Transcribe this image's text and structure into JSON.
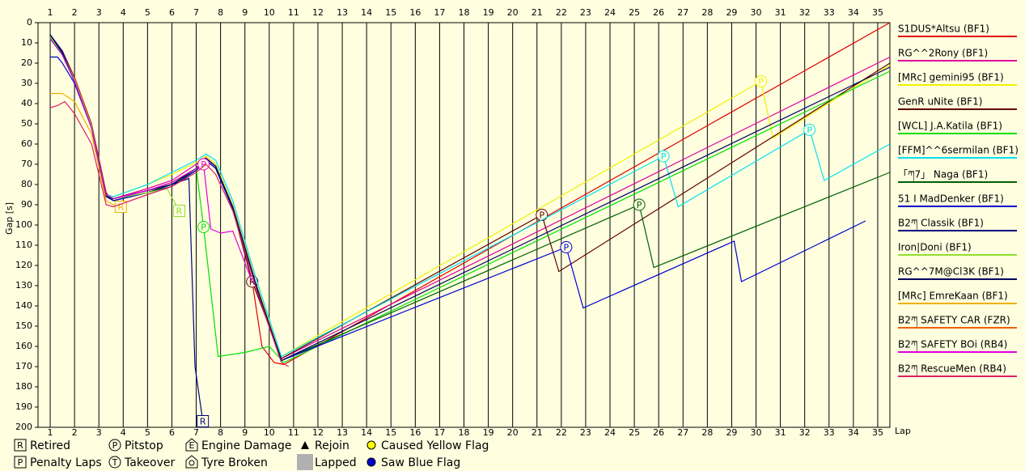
{
  "chart_data": {
    "type": "line",
    "y_label": "Gap [s]",
    "x_label": "Lap",
    "xlim": [
      0.5,
      35.5
    ],
    "xticks": [
      1,
      2,
      3,
      4,
      5,
      6,
      7,
      8,
      9,
      10,
      11,
      12,
      13,
      14,
      15,
      16,
      17,
      18,
      19,
      20,
      21,
      22,
      23,
      24,
      25,
      26,
      27,
      28,
      29,
      30,
      31,
      32,
      33,
      34,
      35
    ],
    "ylim": [
      0,
      200
    ],
    "y_inverted": true,
    "yticks": [
      0,
      10,
      20,
      30,
      40,
      50,
      60,
      70,
      80,
      90,
      100,
      110,
      120,
      130,
      140,
      150,
      160,
      170,
      180,
      190,
      200
    ],
    "grid": true,
    "legend": "right",
    "series": [
      {
        "name": "S1DUS*Altsu (BF1)",
        "color": "#e00000",
        "x": [
          1,
          1.5,
          2,
          2.7,
          3.3,
          3.6,
          5,
          6,
          7,
          7.4,
          7.8,
          8.5,
          9.3,
          9.7,
          10.2,
          10.6,
          35.5
        ],
        "values": [
          6,
          14,
          27,
          50,
          84,
          88,
          84,
          80,
          73,
          68,
          72,
          92,
          128,
          160,
          168,
          169,
          0
        ]
      },
      {
        "name": "RG^^2Rony (BF1)",
        "color": "#e000a0",
        "x": [
          1,
          1.5,
          2,
          2.7,
          3.3,
          3.6,
          5,
          6,
          7,
          7.4,
          7.8,
          8.5,
          9.5,
          10.5,
          35.5
        ],
        "values": [
          7,
          15,
          28,
          51,
          85,
          87,
          82,
          78,
          70,
          66,
          70,
          90,
          130,
          166,
          17
        ]
      },
      {
        "name": "[MRc] gemini95 (BF1)",
        "color": "#f0f000",
        "x": [
          1,
          1.5,
          2,
          2.7,
          3.3,
          3.6,
          5,
          6,
          7,
          7.4,
          7.8,
          8.5,
          9.5,
          10.5,
          30.2,
          30.7,
          35.5
        ],
        "values": [
          8,
          15,
          29,
          51,
          86,
          86,
          80,
          75,
          69,
          66,
          70,
          90,
          130,
          165,
          29,
          57,
          21
        ],
        "markers": [
          {
            "x": 30.2,
            "value": 29,
            "label": "P",
            "shape": "circle"
          }
        ]
      },
      {
        "name": "GenR uNite (BF1)",
        "color": "#600000",
        "x": [
          1,
          1.5,
          2,
          2.7,
          3.3,
          3.6,
          5,
          6,
          7,
          7.4,
          7.8,
          8.5,
          9.3,
          10.5,
          21.2,
          21.9,
          35.5
        ],
        "values": [
          6,
          15,
          28,
          51,
          85,
          87,
          83,
          79,
          72,
          67,
          71,
          92,
          128,
          166,
          95,
          123,
          20
        ],
        "markers": [
          {
            "x": 9.3,
            "value": 128,
            "label": "R",
            "shape": "circle"
          },
          {
            "x": 21.2,
            "value": 95,
            "label": "P",
            "shape": "circle"
          }
        ]
      },
      {
        "name": "[WCL] J.A.Katila (BF1)",
        "color": "#00e000",
        "x": [
          1,
          1.5,
          2,
          2.7,
          3.3,
          3.6,
          5,
          6,
          7,
          7.3,
          7.9,
          9,
          10,
          10.6,
          35.5
        ],
        "values": [
          7,
          16,
          29,
          52,
          86,
          88,
          84,
          80,
          72,
          101,
          165,
          163,
          160,
          168,
          24
        ],
        "markers": [
          {
            "x": 7.3,
            "value": 101,
            "label": "P",
            "shape": "circle"
          }
        ]
      },
      {
        "name": "[FFM]^^6sermilan (BF1)",
        "color": "#00e0f0",
        "x": [
          1,
          1.5,
          2,
          2.7,
          3.3,
          3.6,
          5,
          6,
          7,
          7.4,
          7.8,
          8.5,
          9.5,
          10.5,
          26.2,
          26.8,
          32.2,
          32.8,
          35.5
        ],
        "values": [
          8,
          16,
          29,
          52,
          85,
          86,
          80,
          74,
          68,
          65,
          68,
          88,
          128,
          165,
          66,
          91,
          53,
          78,
          60
        ],
        "markers": [
          {
            "x": 26.2,
            "value": 66,
            "label": "P",
            "shape": "circle"
          },
          {
            "x": 32.2,
            "value": 53,
            "label": "P",
            "shape": "circle"
          }
        ]
      },
      {
        "name": "「ཀ7」 Naga (BF1)",
        "color": "#006000",
        "x": [
          1,
          1.5,
          2,
          2.7,
          3.3,
          3.6,
          5,
          6,
          7,
          7.4,
          7.8,
          8.5,
          9.5,
          10.5,
          25.2,
          25.8,
          35.5
        ],
        "values": [
          7,
          15,
          28,
          51,
          85,
          88,
          84,
          80,
          73,
          68,
          72,
          92,
          132,
          167,
          90,
          121,
          74
        ],
        "markers": [
          {
            "x": 25.2,
            "value": 90,
            "label": "P",
            "shape": "circle"
          }
        ]
      },
      {
        "name": "51 I MadDenker (BF1)",
        "color": "#0000d0",
        "x": [
          1,
          1.3,
          1.5,
          2,
          2.7,
          3.3,
          3.6,
          5,
          6,
          7,
          7.4,
          7.8,
          8.5,
          9.5,
          10.5,
          22.2,
          22.9,
          29.1,
          29.4,
          34.5
        ],
        "values": [
          17,
          17,
          20,
          30,
          52,
          86,
          88,
          84,
          81,
          73,
          68,
          72,
          92,
          132,
          167,
          111,
          141,
          108,
          128,
          98
        ],
        "markers": [
          {
            "x": 22.2,
            "value": 111,
            "label": "P",
            "shape": "circle"
          }
        ]
      },
      {
        "name": "B2ཀ Classik (BF1)",
        "color": "#000080",
        "x": [
          1,
          1.5,
          2,
          2.7,
          3.3,
          3.6,
          5,
          6,
          6.7,
          6.95,
          7.27
        ],
        "values": [
          6,
          14,
          28,
          52,
          86,
          87,
          83,
          80,
          77,
          170,
          197
        ],
        "markers": [
          {
            "x": 7.27,
            "value": 197,
            "label": "R",
            "shape": "box"
          }
        ]
      },
      {
        "name": "Iron|Doni (BF1)",
        "color": "#90e030",
        "x": [
          1,
          1.5,
          2,
          2.7,
          3.3,
          3.6,
          5,
          5.8,
          6.3
        ],
        "values": [
          7,
          15,
          28,
          51,
          86,
          87,
          84,
          82,
          93
        ],
        "markers": [
          {
            "x": 6.3,
            "value": 93,
            "label": "R",
            "shape": "box"
          }
        ]
      },
      {
        "name": "RG^^7M@Cl3K (BF1)",
        "color": "#000060",
        "x": [
          1,
          1.5,
          2,
          2.7,
          3.3,
          3.6,
          5,
          6,
          7,
          7.4,
          7.8,
          8.5,
          9.5,
          10.5,
          35.5
        ],
        "values": [
          6,
          15,
          29,
          52,
          86,
          87,
          83,
          80,
          72,
          67,
          71,
          91,
          131,
          167,
          22
        ]
      },
      {
        "name": "[MRc] EmreKaan (BF1)",
        "color": "#f0b000",
        "x": [
          1,
          1.5,
          2,
          2.7,
          3.3,
          3.6,
          3.9
        ],
        "values": [
          35,
          35,
          39,
          55,
          88,
          90,
          91
        ],
        "markers": [
          {
            "x": 3.9,
            "value": 91,
            "label": "R",
            "shape": "box"
          }
        ]
      },
      {
        "name": "B2ཀ SAFETY CAR (FZR)",
        "color": "#f06000",
        "x": [],
        "values": []
      },
      {
        "name": "B2ཀ SAFETY BOi (RB4)",
        "color": "#e000e0",
        "x": [
          1,
          1.5,
          2,
          2.7,
          3.3,
          3.6,
          5,
          6,
          7,
          7.3,
          7.6,
          8,
          8.5,
          9.3
        ],
        "values": [
          8,
          16,
          29,
          52,
          85,
          87,
          83,
          79,
          72,
          70,
          102,
          104,
          103,
          128
        ],
        "markers": [
          {
            "x": 7.3,
            "value": 70,
            "label": "P",
            "shape": "circle"
          }
        ]
      },
      {
        "name": "B2ཀ RescueMen (RB4)",
        "color": "#e02060",
        "x": [
          1,
          1.3,
          1.6,
          2,
          2.7,
          3.3,
          3.6,
          5,
          6,
          7,
          7.4,
          7.8,
          8.5,
          9.5,
          10.5,
          10.8
        ],
        "values": [
          42,
          41,
          39,
          45,
          60,
          90,
          91,
          85,
          81,
          74,
          70,
          75,
          93,
          133,
          168,
          170
        ]
      }
    ],
    "key": [
      {
        "icon": "box",
        "symbol": "R",
        "label": "Retired"
      },
      {
        "icon": "box",
        "symbol": "P",
        "label": "Penalty Laps"
      },
      {
        "icon": "circle",
        "symbol": "P",
        "label": "Pitstop"
      },
      {
        "icon": "circle",
        "symbol": "T",
        "label": "Takeover"
      },
      {
        "icon": "house",
        "symbol": "E",
        "label": "Engine Damage"
      },
      {
        "icon": "house-ring",
        "label": "Tyre Broken"
      },
      {
        "icon": "triangle",
        "label": "Rejoin"
      },
      {
        "icon": "gray-square",
        "label": "Lapped"
      },
      {
        "icon": "dot",
        "color": "#ffff00",
        "label": "Caused Yellow Flag"
      },
      {
        "icon": "dot",
        "color": "#0000cc",
        "label": "Saw Blue Flag"
      }
    ]
  }
}
